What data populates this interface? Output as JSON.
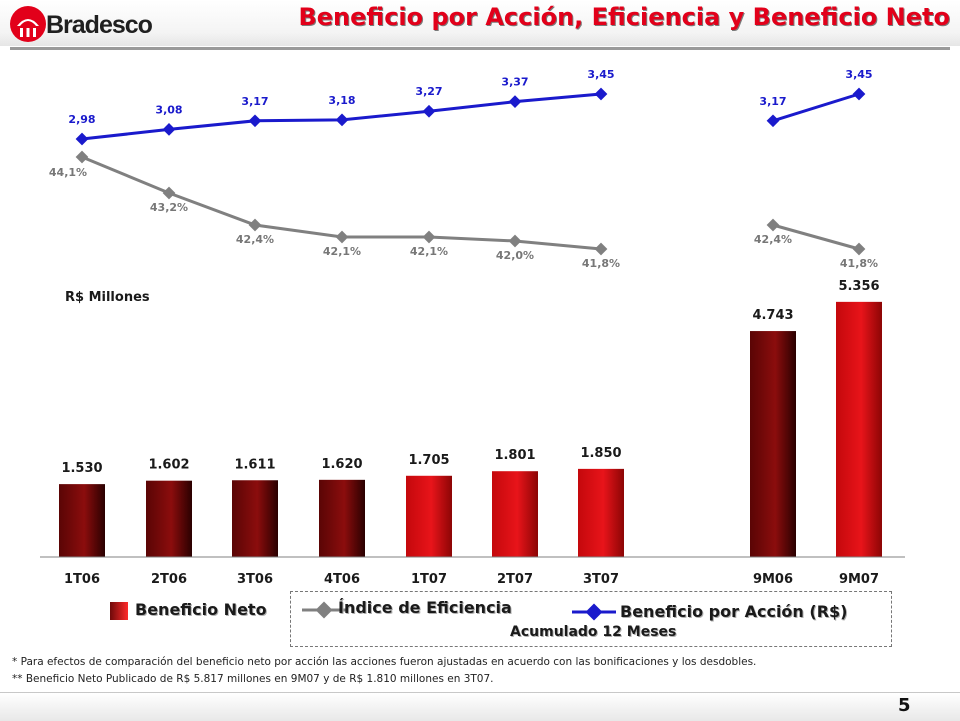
{
  "brand": {
    "name": "Bradesco"
  },
  "title": "Beneficio por Acción, Eficiencia y Beneficio Neto",
  "units_label": "R$ Millones",
  "legend": {
    "net_income": "Beneficio Neto",
    "efficiency": "Índice de Eficiencia",
    "eps": "Beneficio por Acción (R$)",
    "accumulated": "Acumulado 12 Meses"
  },
  "footnotes": [
    "* Para efectos de comparación del beneficio neto por acción las acciones fueron ajustadas en acuerdo con las bonificaciones y los desdobles.",
    "** Beneficio Neto Publicado de R$ 5.817 millones en 9M07 y de R$ 1.810 millones en 3T07."
  ],
  "page_number": "5",
  "colors": {
    "title": "#e2001a",
    "bar_dark": "#8b0d0d",
    "bar_red": "#e8141a",
    "eps_line": "#1a1acc",
    "efficiency_line": "#808080"
  },
  "chart_data": [
    {
      "type": "bar",
      "ylabel": "R$ Millones",
      "categories": [
        "1T06",
        "2T06",
        "3T06",
        "4T06",
        "1T07",
        "2T07",
        "3T07",
        "9M06",
        "9M07"
      ],
      "series": [
        {
          "name": "Beneficio Neto",
          "values": [
            1530,
            1602,
            1611,
            1620,
            1705,
            1801,
            1850,
            4743,
            5356
          ],
          "labels": [
            "1.530",
            "1.602",
            "1.611",
            "1.620",
            "1.705",
            "1.801",
            "1.850",
            "4.743",
            "5.356"
          ],
          "tone": [
            "dark",
            "dark",
            "dark",
            "dark",
            "red",
            "red",
            "red",
            "dark",
            "red"
          ]
        }
      ],
      "ylim": [
        0,
        5500
      ],
      "gap_after_index": 6,
      "grid": false
    },
    {
      "type": "line",
      "categories": [
        "1T06",
        "2T06",
        "3T06",
        "4T06",
        "1T07",
        "2T07",
        "3T07",
        "9M06",
        "9M07"
      ],
      "series": [
        {
          "name": "Beneficio por Acción (R$)",
          "groups": [
            [
              0,
              1,
              2,
              3,
              4,
              5,
              6
            ],
            [
              7,
              8
            ]
          ],
          "values": [
            2.98,
            3.08,
            3.17,
            3.18,
            3.27,
            3.37,
            3.45,
            3.17,
            3.45
          ],
          "labels": [
            "2,98",
            "3,08",
            "3,17",
            "3,18",
            "3,27",
            "3,37",
            "3,45",
            "3,17",
            "3,45"
          ]
        },
        {
          "name": "Índice de Eficiencia",
          "groups": [
            [
              0,
              1,
              2,
              3,
              4,
              5,
              6
            ],
            [
              7,
              8
            ]
          ],
          "values": [
            44.1,
            43.2,
            42.4,
            42.1,
            42.1,
            42.0,
            41.8,
            42.4,
            41.8
          ],
          "labels": [
            "44,1%",
            "43,2%",
            "42,4%",
            "42,1%",
            "42,1%",
            "42,0%",
            "41,8%",
            "42,4%",
            "41,8%"
          ]
        }
      ],
      "grid": false
    }
  ]
}
